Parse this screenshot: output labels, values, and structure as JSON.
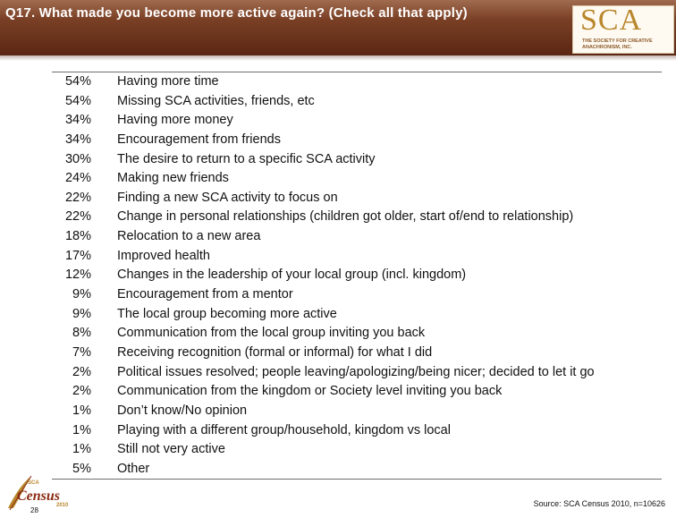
{
  "header": {
    "title": "Q17. What made you become more active again? (Check all that apply)",
    "logo": {
      "text": "SCA",
      "subtitle": "THE SOCIETY FOR CREATIVE ANACHRONISM, INC."
    }
  },
  "items": [
    {
      "pct": "54%",
      "label": "Having more time"
    },
    {
      "pct": "54%",
      "label": "Missing SCA activities, friends, etc"
    },
    {
      "pct": "34%",
      "label": "Having more money"
    },
    {
      "pct": "34%",
      "label": "Encouragement from friends"
    },
    {
      "pct": "30%",
      "label": "The desire to return to a specific SCA activity"
    },
    {
      "pct": "24%",
      "label": "Making new friends"
    },
    {
      "pct": "22%",
      "label": "Finding a new SCA activity to focus on"
    },
    {
      "pct": "22%",
      "label": "Change in personal relationships (children got older, start of/end to relationship)"
    },
    {
      "pct": "18%",
      "label": "Relocation to a new area"
    },
    {
      "pct": "17%",
      "label": "Improved health"
    },
    {
      "pct": "12%",
      "label": "Changes in the leadership of your local group (incl. kingdom)"
    },
    {
      "pct": "9%",
      "label": "Encouragement from a mentor"
    },
    {
      "pct": "9%",
      "label": "The local group becoming more active"
    },
    {
      "pct": "8%",
      "label": "Communication from the local group inviting you back"
    },
    {
      "pct": "7%",
      "label": "Receiving recognition (formal or informal) for what I did"
    },
    {
      "pct": "2%",
      "label": "Political issues resolved; people leaving/apologizing/being nicer; decided to let it go"
    },
    {
      "pct": "2%",
      "label": "Communication from the kingdom or Society level inviting you back"
    },
    {
      "pct": "1%",
      "label": "Don’t know/No opinion"
    },
    {
      "pct": "1%",
      "label": "Playing with a different group/household, kingdom vs local"
    },
    {
      "pct": "1%",
      "label": "Still not very active"
    },
    {
      "pct": "5%",
      "label": "Other"
    }
  ],
  "footer": {
    "page_number": "28",
    "census_logo": {
      "top": "SCA",
      "word": "Census",
      "year": "2010"
    },
    "source": "Source: SCA Census 2010, n=10626"
  },
  "colors": {
    "header_dark": "#5a2612",
    "header_light": "#a06b4e",
    "logo_gold": "#b8862c"
  }
}
